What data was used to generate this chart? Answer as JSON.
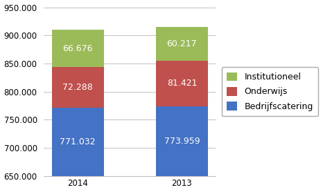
{
  "years": [
    "2014",
    "2013"
  ],
  "bedrijfscatering": [
    771032,
    773959
  ],
  "onderwijs": [
    72288,
    81421
  ],
  "institutioneel": [
    66676,
    60217
  ],
  "colors": {
    "bedrijfscatering": "#4472C4",
    "onderwijs": "#C0504D",
    "institutioneel": "#9BBB59"
  },
  "ylim": [
    650000,
    950000
  ],
  "yticks": [
    650000,
    700000,
    750000,
    800000,
    850000,
    900000,
    950000
  ],
  "legend_labels": [
    "Institutioneel",
    "Onderwijs",
    "Bedrijfscatering"
  ],
  "bar_width": 0.5,
  "label_color": "#FFFFFF",
  "label_fontsize": 9,
  "tick_fontsize": 8.5,
  "legend_fontsize": 9,
  "background_color": "#FFFFFF",
  "grid_color": "#C0C0C0",
  "ymin": 650000
}
